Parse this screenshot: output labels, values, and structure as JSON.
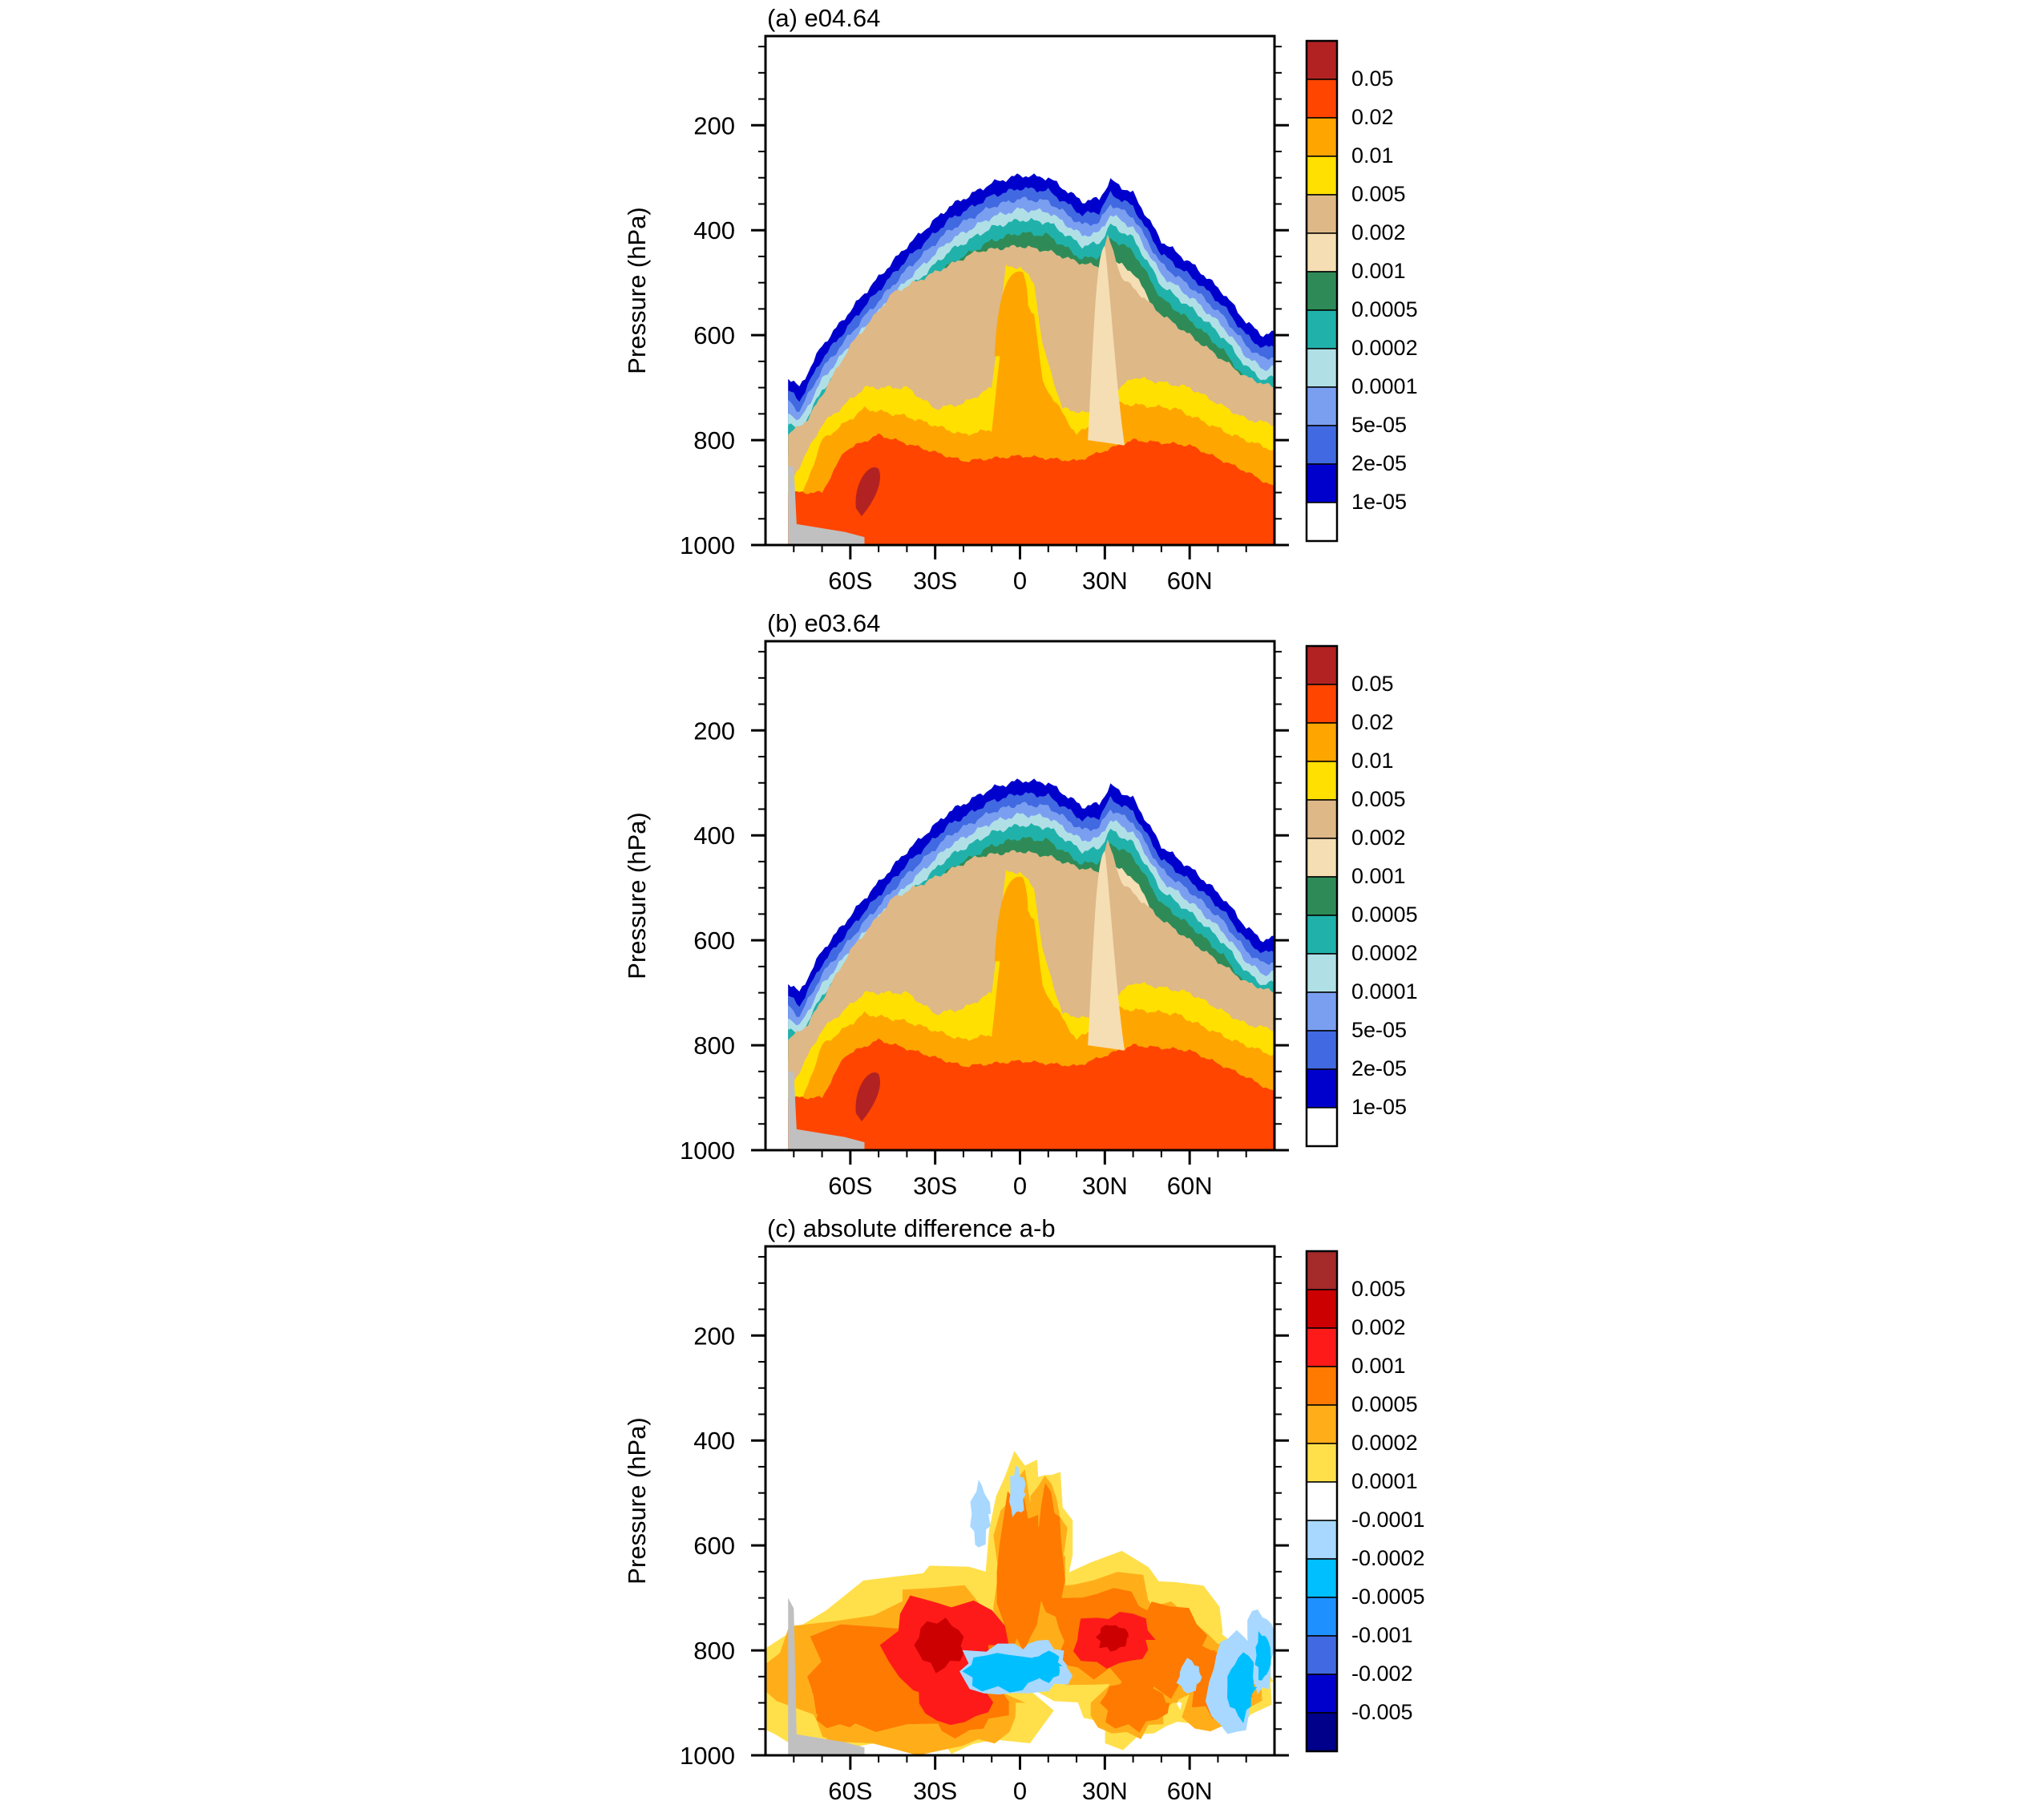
{
  "chart_data": [
    {
      "type": "contour",
      "title": "(a) e04.64",
      "xlabel": "",
      "ylabel": "Pressure (hPa)",
      "x_ticks": [
        "60S",
        "30S",
        "0",
        "30N",
        "60N"
      ],
      "x_tick_values": [
        -60,
        -30,
        0,
        30,
        60
      ],
      "xlim": [
        -90,
        90
      ],
      "y_ticks": [
        "200",
        "400",
        "600",
        "800",
        "1000"
      ],
      "y_tick_values": [
        200,
        400,
        600,
        800,
        1000
      ],
      "ylim": [
        30,
        1000
      ],
      "colorbar": {
        "labels": [
          "0.05",
          "0.02",
          "0.01",
          "0.005",
          "0.002",
          "0.001",
          "0.0005",
          "0.0002",
          "0.0001",
          "5e-05",
          "2e-05",
          "1e-05"
        ],
        "colors": [
          "#b22222",
          "#ff4500",
          "#ffa500",
          "#ffe000",
          "#deb887",
          "#f5deb3",
          "#2e8b57",
          "#20b2aa",
          "#b0e0e6",
          "#7b9ff0",
          "#4169e1",
          "#0000cd",
          "#ffffff"
        ]
      },
      "levels": [
        1e-05,
        2e-05,
        5e-05,
        0.0001,
        0.0002,
        0.0005,
        0.001,
        0.002,
        0.005,
        0.01,
        0.02,
        0.05
      ],
      "missing_color": "#c0c0c0"
    },
    {
      "type": "contour",
      "title": "(b) e03.64",
      "xlabel": "",
      "ylabel": "Pressure (hPa)",
      "x_ticks": [
        "60S",
        "30S",
        "0",
        "30N",
        "60N"
      ],
      "x_tick_values": [
        -60,
        -30,
        0,
        30,
        60
      ],
      "xlim": [
        -90,
        90
      ],
      "y_ticks": [
        "200",
        "400",
        "600",
        "800",
        "1000"
      ],
      "y_tick_values": [
        200,
        400,
        600,
        800,
        1000
      ],
      "ylim": [
        30,
        1000
      ],
      "colorbar": {
        "labels": [
          "0.05",
          "0.02",
          "0.01",
          "0.005",
          "0.002",
          "0.001",
          "0.0005",
          "0.0002",
          "0.0001",
          "5e-05",
          "2e-05",
          "1e-05"
        ],
        "colors": [
          "#b22222",
          "#ff4500",
          "#ffa500",
          "#ffe000",
          "#deb887",
          "#f5deb3",
          "#2e8b57",
          "#20b2aa",
          "#b0e0e6",
          "#7b9ff0",
          "#4169e1",
          "#0000cd",
          "#ffffff"
        ]
      },
      "levels": [
        1e-05,
        2e-05,
        5e-05,
        0.0001,
        0.0002,
        0.0005,
        0.001,
        0.002,
        0.005,
        0.01,
        0.02,
        0.05
      ],
      "missing_color": "#c0c0c0"
    },
    {
      "type": "contour",
      "title": "(c) absolute difference a-b",
      "xlabel": "",
      "ylabel": "Pressure (hPa)",
      "x_ticks": [
        "60S",
        "30S",
        "0",
        "30N",
        "60N"
      ],
      "x_tick_values": [
        -60,
        -30,
        0,
        30,
        60
      ],
      "xlim": [
        -90,
        90
      ],
      "y_ticks": [
        "200",
        "400",
        "600",
        "800",
        "1000"
      ],
      "y_tick_values": [
        200,
        400,
        600,
        800,
        1000
      ],
      "ylim": [
        30,
        1000
      ],
      "colorbar": {
        "labels": [
          "0.005",
          "0.002",
          "0.001",
          "0.0005",
          "0.0002",
          "0.0001",
          "-0.0001",
          "-0.0002",
          "-0.0005",
          "-0.001",
          "-0.002",
          "-0.005"
        ],
        "colors": [
          "#a52a2a",
          "#cc0000",
          "#ff1a1a",
          "#ff7a00",
          "#ffae1a",
          "#ffe04a",
          "#ffffff",
          "#a8d8ff",
          "#00bfff",
          "#1e90ff",
          "#4169e1",
          "#0000cd",
          "#00008b"
        ]
      },
      "levels": [
        -0.005,
        -0.002,
        -0.001,
        -0.0005,
        -0.0002,
        -0.0001,
        0.0001,
        0.0002,
        0.0005,
        0.001,
        0.002,
        0.005
      ],
      "missing_color": "#c0c0c0"
    }
  ]
}
